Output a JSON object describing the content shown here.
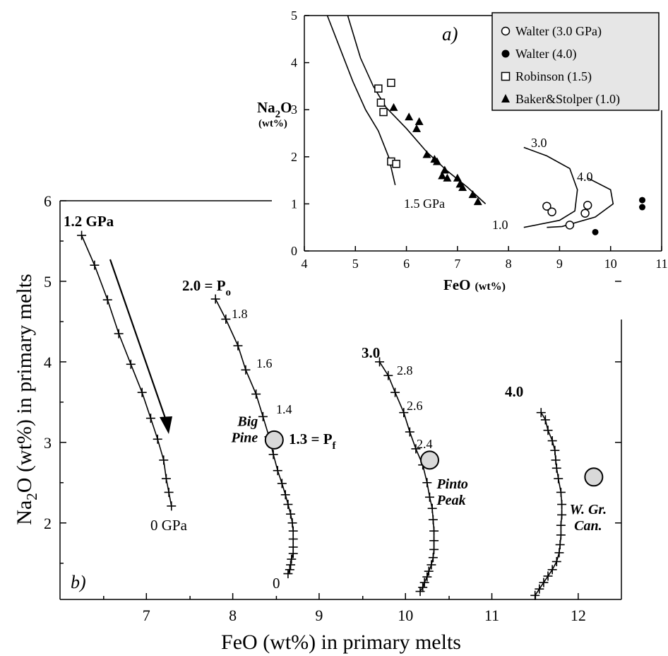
{
  "chart_data": [
    {
      "id": "a",
      "type": "scatter",
      "panel_label": "a)",
      "xlabel": "FeO",
      "xlabel_unit": "(wt%)",
      "ylabel_main": "Na",
      "ylabel_sub": "2",
      "ylabel_end": "O",
      "ylabel_unit": "(wt%)",
      "xlim": [
        4,
        11
      ],
      "ylim": [
        0,
        5
      ],
      "xticks": [
        4,
        5,
        6,
        7,
        8,
        9,
        10,
        11
      ],
      "yticks": [
        0,
        1,
        2,
        3,
        4,
        5
      ],
      "legend_position": "top-right",
      "series": [
        {
          "name": "Walter (3.0 GPa)",
          "marker": "open-circle",
          "points": [
            [
              8.75,
              0.95
            ],
            [
              8.85,
              0.83
            ],
            [
              9.2,
              0.55
            ],
            [
              9.5,
              0.8
            ],
            [
              9.55,
              0.97
            ]
          ]
        },
        {
          "name": "Walter (4.0)",
          "marker": "filled-circle",
          "points": [
            [
              9.7,
              0.4
            ],
            [
              10.62,
              1.08
            ],
            [
              10.62,
              0.93
            ]
          ]
        },
        {
          "name": "Robinson (1.5)",
          "marker": "open-square",
          "points": [
            [
              5.45,
              3.45
            ],
            [
              5.7,
              3.57
            ],
            [
              5.5,
              3.15
            ],
            [
              5.55,
              2.95
            ],
            [
              5.7,
              1.9
            ],
            [
              5.8,
              1.85
            ]
          ]
        },
        {
          "name": "Baker&Stolper (1.0)",
          "marker": "filled-triangle",
          "points": [
            [
              5.75,
              3.05
            ],
            [
              6.05,
              2.85
            ],
            [
              6.25,
              2.75
            ],
            [
              6.2,
              2.6
            ],
            [
              6.4,
              2.05
            ],
            [
              6.55,
              1.95
            ],
            [
              6.6,
              1.9
            ],
            [
              6.75,
              1.72
            ],
            [
              6.7,
              1.6
            ],
            [
              6.8,
              1.55
            ],
            [
              7.0,
              1.55
            ],
            [
              7.05,
              1.42
            ],
            [
              7.1,
              1.35
            ],
            [
              7.3,
              1.2
            ],
            [
              7.4,
              1.05
            ]
          ]
        }
      ],
      "curves": [
        {
          "label": "1.5 GPa",
          "points": [
            [
              4.45,
              5.0
            ],
            [
              4.7,
              4.3
            ],
            [
              4.95,
              3.6
            ],
            [
              5.2,
              3.0
            ],
            [
              5.45,
              2.55
            ],
            [
              5.65,
              2.0
            ],
            [
              5.78,
              1.4
            ]
          ]
        },
        {
          "label": "1.0",
          "points": [
            [
              4.85,
              5.0
            ],
            [
              5.1,
              4.1
            ],
            [
              5.35,
              3.5
            ],
            [
              5.6,
              3.05
            ],
            [
              6.0,
              2.6
            ],
            [
              6.4,
              2.1
            ],
            [
              6.8,
              1.7
            ],
            [
              7.2,
              1.35
            ],
            [
              7.55,
              1.0
            ]
          ]
        },
        {
          "label": "3.0",
          "points": [
            [
              8.3,
              2.2
            ],
            [
              8.75,
              2.02
            ],
            [
              9.2,
              1.75
            ],
            [
              9.35,
              1.3
            ],
            [
              9.3,
              0.85
            ],
            [
              9.0,
              0.65
            ],
            [
              8.3,
              0.5
            ]
          ]
        },
        {
          "label": "4.0",
          "points": [
            [
              9.55,
              1.55
            ],
            [
              10.0,
              1.3
            ],
            [
              10.05,
              1.0
            ],
            [
              9.7,
              0.72
            ],
            [
              9.05,
              0.52
            ],
            [
              8.75,
              0.5
            ]
          ]
        }
      ]
    },
    {
      "id": "b",
      "type": "line",
      "panel_label": "b)",
      "xlabel": "FeO (wt%) in primary melts",
      "ylabel_main": "Na",
      "ylabel_sub": "2",
      "ylabel_end": "O (wt%) in primary melts",
      "xlim": [
        6.0,
        12.5
      ],
      "ylim": [
        1.05,
        6.0
      ],
      "xticks": [
        7,
        8,
        9,
        10,
        11,
        12
      ],
      "yticks": [
        2,
        3,
        4,
        5,
        6
      ],
      "series": [
        {
          "name": "1.2 GPa",
          "points": [
            [
              6.25,
              5.57
            ],
            [
              6.4,
              5.2
            ],
            [
              6.55,
              4.77
            ],
            [
              6.68,
              4.35
            ],
            [
              6.82,
              3.97
            ],
            [
              6.95,
              3.62
            ],
            [
              7.05,
              3.3
            ],
            [
              7.13,
              3.04
            ],
            [
              7.2,
              2.78
            ],
            [
              7.23,
              2.55
            ],
            [
              7.26,
              2.38
            ],
            [
              7.29,
              2.21
            ]
          ]
        },
        {
          "name": "2.0",
          "points": [
            [
              7.8,
              4.78
            ],
            [
              7.92,
              4.53
            ],
            [
              8.06,
              4.2
            ],
            [
              8.15,
              3.9
            ],
            [
              8.27,
              3.6
            ],
            [
              8.35,
              3.32
            ],
            [
              8.42,
              3.07
            ],
            [
              8.47,
              2.85
            ],
            [
              8.52,
              2.65
            ],
            [
              8.57,
              2.49
            ],
            [
              8.61,
              2.35
            ],
            [
              8.64,
              2.23
            ],
            [
              8.67,
              2.11
            ],
            [
              8.69,
              2.0
            ],
            [
              8.7,
              1.9
            ],
            [
              8.7,
              1.8
            ],
            [
              8.7,
              1.7
            ],
            [
              8.7,
              1.62
            ],
            [
              8.68,
              1.55
            ],
            [
              8.67,
              1.48
            ],
            [
              8.66,
              1.42
            ],
            [
              8.64,
              1.37
            ]
          ]
        },
        {
          "name": "3.0",
          "points": [
            [
              9.7,
              4.0
            ],
            [
              9.8,
              3.83
            ],
            [
              9.88,
              3.62
            ],
            [
              9.98,
              3.37
            ],
            [
              10.05,
              3.13
            ],
            [
              10.12,
              2.92
            ],
            [
              10.2,
              2.72
            ],
            [
              10.25,
              2.5
            ],
            [
              10.28,
              2.32
            ],
            [
              10.31,
              2.18
            ],
            [
              10.32,
              2.04
            ],
            [
              10.33,
              1.9
            ],
            [
              10.33,
              1.78
            ],
            [
              10.33,
              1.67
            ],
            [
              10.32,
              1.57
            ],
            [
              10.3,
              1.48
            ],
            [
              10.27,
              1.4
            ],
            [
              10.25,
              1.33
            ],
            [
              10.22,
              1.26
            ],
            [
              10.2,
              1.2
            ],
            [
              10.17,
              1.15
            ]
          ]
        },
        {
          "name": "4.0",
          "points": [
            [
              11.57,
              3.37
            ],
            [
              11.62,
              3.28
            ],
            [
              11.65,
              3.15
            ],
            [
              11.7,
              3.02
            ],
            [
              11.73,
              2.9
            ],
            [
              11.74,
              2.78
            ],
            [
              11.75,
              2.68
            ],
            [
              11.77,
              2.55
            ],
            [
              11.8,
              2.38
            ],
            [
              11.81,
              2.23
            ],
            [
              11.81,
              2.1
            ],
            [
              11.8,
              1.97
            ],
            [
              11.8,
              1.85
            ],
            [
              11.79,
              1.73
            ],
            [
              11.78,
              1.63
            ],
            [
              11.75,
              1.52
            ],
            [
              11.7,
              1.42
            ],
            [
              11.65,
              1.34
            ],
            [
              11.6,
              1.26
            ],
            [
              11.55,
              1.18
            ],
            [
              11.5,
              1.1
            ]
          ]
        }
      ],
      "sites": [
        {
          "name": "Big Pine",
          "line1": "Big",
          "line2": "Pine",
          "x": 8.48,
          "y": 3.03
        },
        {
          "name": "Pinto Peak",
          "line1": "Pinto",
          "line2": "Peak",
          "x": 10.28,
          "y": 2.78
        },
        {
          "name": "W. Gr. Can.",
          "line1": "W. Gr.",
          "line2": "Can.",
          "x": 12.18,
          "y": 2.57
        }
      ],
      "annotations": {
        "start_1_2": "1.2 GPa",
        "end_0gpa": "0 GPa",
        "po_base": "2.0 = P",
        "po_sub": "o",
        "pf_base": "1.3 = P",
        "pf_sub": "f",
        "end_0": "0",
        "start_3_0": "3.0",
        "start_4_0": "4.0",
        "p18": "1.8",
        "p16": "1.6",
        "p14": "1.4",
        "p28": "2.8",
        "p26": "2.6",
        "p24": "2.4"
      }
    }
  ]
}
